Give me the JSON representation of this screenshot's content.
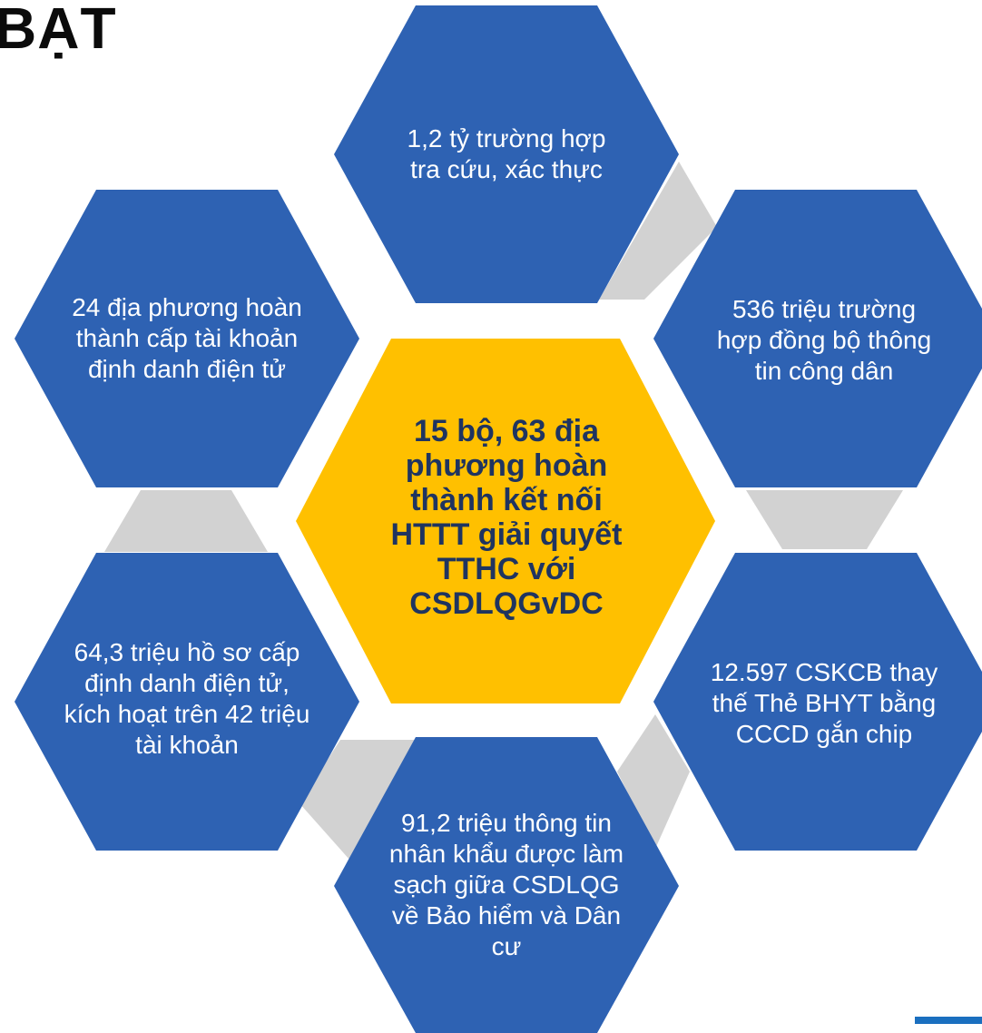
{
  "title": "BẠT",
  "colors": {
    "hex_blue": "#2e62b3",
    "hex_center": "#ffc000",
    "connector": "#d2d2d2",
    "accent": "#1a6fbf"
  },
  "center": {
    "text": "15 bộ, 63 địa phương hoàn thành kết nối HTTT giải quyết TTHC với CSDLQGvDC"
  },
  "hexagons": [
    {
      "id": "top",
      "text": "1,2 tỷ trường hợp tra cứu, xác thực"
    },
    {
      "id": "upper-right",
      "text": "536 triệu trường hợp đồng bộ thông tin công dân"
    },
    {
      "id": "lower-right",
      "text": "12.597 CSKCB thay thế Thẻ BHYT bằng CCCD gắn chip"
    },
    {
      "id": "bottom",
      "text": "91,2 triệu thông tin nhân khẩu được làm sạch giữa CSDLQG về Bảo hiểm và Dân cư"
    },
    {
      "id": "lower-left",
      "text": "64,3 triệu hồ sơ cấp định danh điện tử, kích hoạt trên 42 triệu tài khoản"
    },
    {
      "id": "upper-left",
      "text": "24 địa phương hoàn thành cấp tài khoản định danh điện tử"
    }
  ]
}
